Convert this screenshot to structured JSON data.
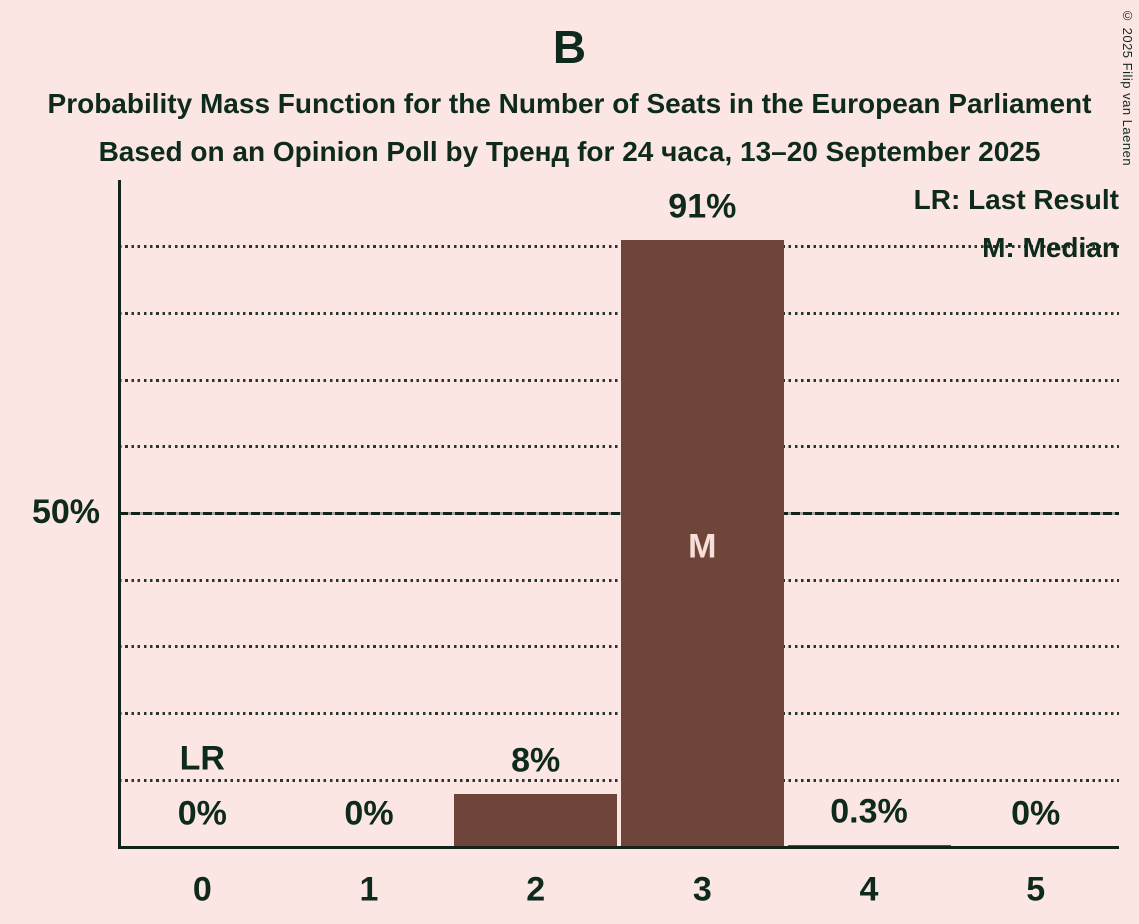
{
  "header": {
    "title": "B",
    "subtitle1": "Probability Mass Function for the Number of Seats in the European Parliament",
    "subtitle2": "Based on an Opinion Poll by Тренд for 24 часа, 13–20 September 2025",
    "copyright": "© 2025 Filip van Laenen"
  },
  "legend": {
    "lr": "LR: Last Result",
    "m": "M: Median"
  },
  "y_axis": {
    "tick_label": "50%",
    "tick_value": 50
  },
  "colors": {
    "background": "#fce6e3",
    "bar": "#6f4539",
    "text": "#0d2a1d",
    "bar_label": "#f9dfdc",
    "axis": "#11231a"
  },
  "chart_data": {
    "type": "bar",
    "title": "B",
    "categories": [
      "0",
      "1",
      "2",
      "3",
      "4",
      "5"
    ],
    "values": [
      0,
      0,
      8,
      91,
      0.3,
      0
    ],
    "value_labels": [
      "0%",
      "0%",
      "8%",
      "91%",
      "0.3%",
      "0%"
    ],
    "xlabel": "",
    "ylabel": "",
    "ylim": [
      0,
      100
    ],
    "gridline_step": 10,
    "emphasized_gridline": 50,
    "grid": true,
    "legend_position": "top-right",
    "annotations": {
      "lr_label": "LR",
      "lr_index": 0,
      "median_label": "M",
      "median_index": 3
    }
  }
}
